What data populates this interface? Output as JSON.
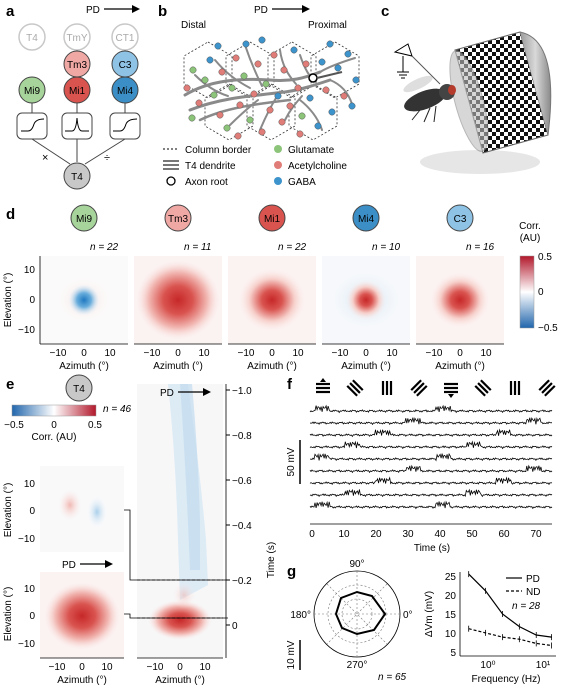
{
  "panels": {
    "a": "a",
    "b": "b",
    "c": "c",
    "d": "d",
    "e": "e",
    "f": "f",
    "g": "g"
  },
  "panel_a": {
    "pd_label": "PD",
    "neurons_top": [
      "T4",
      "TmY",
      "CT1"
    ],
    "neurons_mid": [
      "Tm3",
      "C3"
    ],
    "neurons_bottom": [
      "Mi9",
      "Mi1",
      "Mi4"
    ],
    "ops": [
      "×",
      "÷"
    ],
    "output": "T4",
    "colors": {
      "mi9": "#a6d49a",
      "tm3": "#f0a8a4",
      "mi1": "#d9544f",
      "mi4": "#3c8fc6",
      "c3": "#8ec3e6",
      "grey": "#c8c8c8"
    }
  },
  "panel_b": {
    "distal": "Distal",
    "proximal": "Proximal",
    "pd_label": "PD",
    "legend": [
      {
        "label": "Column border",
        "kind": "dash"
      },
      {
        "label": "T4 dendrite",
        "kind": "bar"
      },
      {
        "label": "Axon root",
        "kind": "circle"
      },
      {
        "label": "Glutamate",
        "kind": "dot",
        "color": "#8cc47a"
      },
      {
        "label": "Acetylcholine",
        "kind": "dot",
        "color": "#e07d78"
      },
      {
        "label": "GABA",
        "kind": "dot",
        "color": "#3d93cc"
      }
    ]
  },
  "panel_d": {
    "cells": [
      {
        "name": "Mi9",
        "n": "n = 22",
        "color": "#a6d49a"
      },
      {
        "name": "Tm3",
        "n": "n = 11",
        "color": "#f0a8a4"
      },
      {
        "name": "Mi1",
        "n": "n = 22",
        "color": "#d9544f"
      },
      {
        "name": "Mi4",
        "n": "n = 10",
        "color": "#3c8fc6"
      },
      {
        "name": "C3",
        "n": "n = 16",
        "color": "#8ec3e6"
      }
    ],
    "xlabel": "Azimuth (°)",
    "ylabel": "Elevation (°)",
    "xticks": [
      "−10",
      "0",
      "10"
    ],
    "yticks": [
      "10",
      "0",
      "−10"
    ],
    "cbar_title_1": "Corr.",
    "cbar_title_2": "(AU)",
    "cbar_ticks": [
      "0.5",
      "0",
      "−0.5"
    ]
  },
  "panel_e": {
    "cell": "T4",
    "n": "n = 46",
    "cbar_ticks": [
      "−0.5",
      "0",
      "0.5"
    ],
    "cbar_title": "Corr. (AU)",
    "pd_label_1": "PD",
    "pd_label_2": "PD",
    "ylabel": "Elevation (°)",
    "xlabel_1": "Azimuth (°)",
    "xlabel_2": "Azimuth (°)",
    "yticks": [
      "10",
      "0",
      "−10"
    ],
    "xticks": [
      "−10",
      "0",
      "10"
    ],
    "time_label": "Time (s)",
    "time_ticks": [
      "−1.0",
      "−0.8",
      "−0.6",
      "−0.4",
      "−0.2",
      "0"
    ]
  },
  "panel_f": {
    "scale": "50 mV",
    "xlabel": "Time (s)",
    "xticks": [
      "0",
      "10",
      "20",
      "30",
      "40",
      "50",
      "60",
      "70"
    ]
  },
  "panel_g": {
    "polar_labels": [
      "90°",
      "180°",
      "0°",
      "270°"
    ],
    "scale": "10 mV",
    "n_polar": "n = 65",
    "legend": [
      {
        "label": "PD"
      },
      {
        "label": "ND"
      }
    ],
    "n_line": "n = 28",
    "ylabel": "ΔVm (mV)",
    "xlabel": "Frequency (Hz)",
    "yticks": [
      "25",
      "20",
      "15",
      "10",
      "5"
    ],
    "xticks": [
      "10⁰",
      "10¹"
    ]
  },
  "chart_data": [
    {
      "type": "line",
      "xlabel": "Frequency (Hz)",
      "ylabel": "ΔVm (mV)",
      "ylim": [
        5,
        25
      ],
      "series": [
        {
          "name": "PD",
          "x": [
            0.5,
            1,
            2,
            4,
            8,
            15
          ],
          "y": [
            24.5,
            20.5,
            15,
            12,
            10,
            9.5
          ]
        },
        {
          "name": "ND",
          "x": [
            0.5,
            1,
            2,
            4,
            8,
            15
          ],
          "y": [
            11.5,
            10.5,
            9.5,
            9,
            8,
            7.5
          ]
        }
      ]
    }
  ]
}
